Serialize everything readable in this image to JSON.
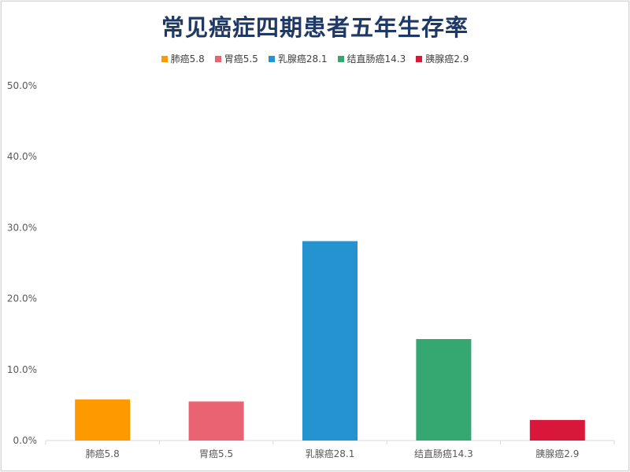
{
  "chart_data": {
    "type": "bar",
    "title": "常见癌症四期患者五年生存率",
    "categories": [
      "肺癌5.8",
      "胃癌5.5",
      "乳腺癌28.1",
      "结直肠癌14.3",
      "胰腺癌2.9"
    ],
    "values": [
      5.8,
      5.5,
      28.1,
      14.3,
      2.9
    ],
    "colors": [
      "#ff9900",
      "#e96372",
      "#2693d1",
      "#35a771",
      "#d9173a"
    ],
    "legend": [
      "肺癌5.8",
      "胃癌5.5",
      "乳腺癌28.1",
      "结直肠癌14.3",
      "胰腺癌2.9"
    ],
    "legend_position": "top",
    "yticks": [
      "0.0%",
      "10.0%",
      "20.0%",
      "30.0%",
      "40.0%",
      "50.0%"
    ],
    "ylim": [
      0,
      50
    ],
    "grid": false,
    "xlabel": "",
    "ylabel": ""
  }
}
